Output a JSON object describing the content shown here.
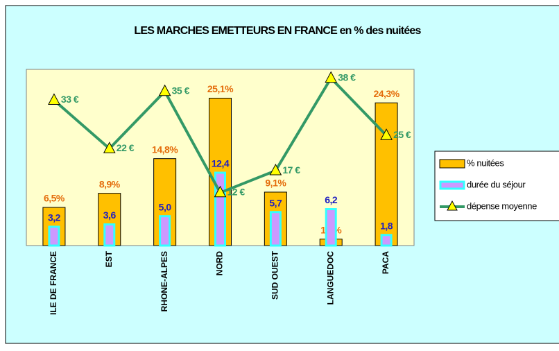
{
  "chart_data": {
    "type": "bar",
    "title": "LES MARCHES EMETTEURS EN FRANCE en % des nuitées",
    "categories": [
      "ILE DE FRANCE",
      "EST",
      "RHONE-ALPES",
      "NORD",
      "SUD OUEST",
      "LANGUEDOC",
      "PACA"
    ],
    "series": [
      {
        "name": "% nuitées",
        "type": "bar",
        "color": "#ffc000",
        "values": [
          6.5,
          8.9,
          14.8,
          25.1,
          9.1,
          1.1,
          24.3
        ],
        "value_labels": [
          "6,5%",
          "8,9%",
          "14,8%",
          "25,1%",
          "9,1%",
          "1,1%",
          "24,3%"
        ]
      },
      {
        "name": "durée du séjour",
        "type": "bar",
        "color": "#cc99ff",
        "values": [
          3.2,
          3.6,
          5.0,
          12.4,
          5.7,
          6.2,
          1.8
        ],
        "value_labels": [
          "3,2",
          "3,6",
          "5,0",
          "12,4",
          "5,7",
          "6,2",
          "1,8"
        ]
      },
      {
        "name": "dépense moyenne",
        "type": "line",
        "axis": "y2",
        "color": "#339966",
        "values": [
          33,
          22,
          35,
          12,
          17,
          38,
          25
        ],
        "value_labels": [
          "33 €",
          "22 €",
          "35 €",
          "12 €",
          "17 €",
          "38 €",
          "25 €"
        ]
      }
    ],
    "ylim": [
      0,
      30
    ],
    "y2lim": [
      0,
      40
    ]
  }
}
